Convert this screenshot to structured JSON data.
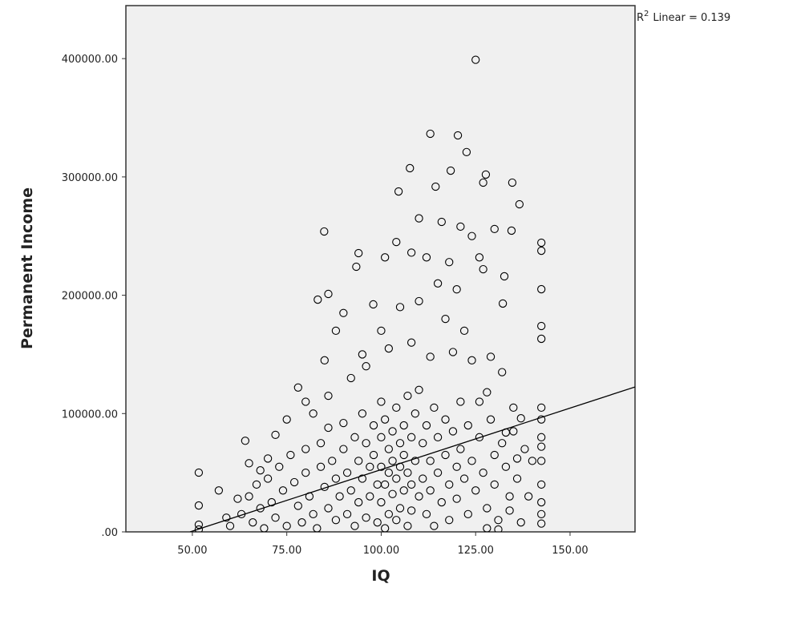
{
  "chart_data": {
    "type": "scatter",
    "x_label": "IQ",
    "y_label": "Permanent Income",
    "annotation": {
      "r": "R",
      "superscript": "2",
      "text": "Linear = 0.139"
    },
    "xlim": [
      32.4,
      167.2
    ],
    "ylim": [
      0,
      444800
    ],
    "xticks": [
      {
        "value": 50,
        "label": "50.00"
      },
      {
        "value": 75,
        "label": "75.00"
      },
      {
        "value": 100,
        "label": "100.00"
      },
      {
        "value": 125,
        "label": "125.00"
      },
      {
        "value": 150,
        "label": "150.00"
      }
    ],
    "yticks": [
      {
        "value": 0,
        "label": ".00"
      },
      {
        "value": 100000,
        "label": "100000.00"
      },
      {
        "value": 200000,
        "label": "200000.00"
      },
      {
        "value": 300000,
        "label": "300000.00"
      },
      {
        "value": 400000,
        "label": "400000.00"
      }
    ],
    "color": "#000000",
    "background": "#f0f0f0",
    "fit_line": {
      "x": [
        49.4,
        167.2
      ],
      "y": [
        0,
        122500
      ]
    },
    "x": [
      125,
      113,
      120.3,
      122.6,
      107.6,
      118.4,
      127.7,
      134.7,
      127,
      114.4,
      104.6,
      136.6,
      84.9,
      134.5,
      142.4,
      142.4,
      93.4,
      94,
      86,
      83.2,
      97.9,
      142.4,
      142.4,
      142.4,
      132.6,
      132.2,
      110,
      116,
      121,
      124,
      112,
      118,
      126,
      130,
      108,
      104,
      101,
      115,
      120,
      127,
      110,
      105,
      117,
      122,
      100,
      95,
      90,
      88,
      85,
      78,
      75,
      72,
      64,
      65,
      68,
      70,
      80,
      82,
      86,
      92,
      96,
      102,
      108,
      113,
      119,
      124,
      129,
      132,
      128,
      135,
      137,
      133,
      138,
      140,
      136,
      139,
      134,
      137,
      131,
      126,
      142.4,
      142.4,
      142.4,
      142.4,
      142.4,
      142.4,
      142.4,
      142.4,
      142.4,
      51.7,
      51.7,
      51.7,
      51.7,
      57,
      59,
      62,
      60,
      63,
      65,
      66,
      67,
      68,
      69,
      70,
      71,
      72,
      73,
      74,
      75,
      76,
      77,
      78,
      79,
      80,
      80,
      81,
      82,
      83,
      84,
      84,
      85,
      86,
      86,
      87,
      88,
      88,
      89,
      90,
      90,
      91,
      91,
      92,
      93,
      93,
      94,
      94,
      95,
      95,
      96,
      96,
      97,
      97,
      98,
      98,
      99,
      99,
      100,
      100,
      100,
      100,
      101,
      101,
      101,
      102,
      102,
      102,
      103,
      103,
      103,
      104,
      104,
      104,
      105,
      105,
      105,
      106,
      106,
      106,
      107,
      107,
      107,
      108,
      108,
      108,
      109,
      109,
      110,
      110,
      111,
      111,
      112,
      112,
      113,
      113,
      114,
      114,
      115,
      115,
      116,
      117,
      117,
      118,
      118,
      119,
      120,
      120,
      121,
      121,
      122,
      123,
      123,
      124,
      125,
      126,
      127,
      128,
      129,
      130,
      130,
      131,
      132,
      133,
      134,
      135,
      136,
      128
    ],
    "values": [
      399000,
      336500,
      335100,
      321000,
      307400,
      305300,
      302000,
      295200,
      295200,
      291800,
      287700,
      276900,
      253900,
      254600,
      244400,
      237600,
      224100,
      235600,
      201100,
      196300,
      192300,
      205100,
      163200,
      174000,
      216000,
      193000,
      265000,
      262000,
      258000,
      250000,
      232000,
      228000,
      232000,
      256000,
      236000,
      245000,
      232000,
      210000,
      205000,
      222000,
      195000,
      190000,
      180000,
      170000,
      170000,
      150000,
      185000,
      170000,
      145000,
      122000,
      95000,
      82000,
      77000,
      58000,
      52000,
      62000,
      110000,
      100000,
      115000,
      130000,
      140000,
      155000,
      160000,
      148000,
      152000,
      145000,
      148000,
      135000,
      118000,
      105000,
      96000,
      84000,
      70000,
      60000,
      45000,
      30000,
      18000,
      8000,
      2000,
      110000,
      105000,
      95000,
      80000,
      72000,
      60000,
      40000,
      25000,
      15000,
      7000,
      50100,
      22300,
      6100,
      2000,
      35000,
      12000,
      28000,
      5000,
      15000,
      30000,
      8000,
      40000,
      20000,
      3000,
      45000,
      25000,
      12000,
      55000,
      35000,
      5000,
      65000,
      42000,
      22000,
      8000,
      70000,
      50000,
      30000,
      15000,
      3000,
      75000,
      55000,
      38000,
      20000,
      88000,
      60000,
      45000,
      10000,
      30000,
      92000,
      70000,
      50000,
      15000,
      35000,
      80000,
      5000,
      60000,
      25000,
      100000,
      45000,
      75000,
      12000,
      55000,
      30000,
      90000,
      65000,
      40000,
      8000,
      110000,
      80000,
      55000,
      25000,
      95000,
      40000,
      3000,
      70000,
      50000,
      15000,
      85000,
      60000,
      32000,
      105000,
      45000,
      10000,
      75000,
      55000,
      20000,
      90000,
      65000,
      35000,
      115000,
      50000,
      5000,
      80000,
      40000,
      18000,
      100000,
      60000,
      30000,
      120000,
      75000,
      45000,
      90000,
      15000,
      60000,
      35000,
      105000,
      5000,
      80000,
      50000,
      25000,
      95000,
      65000,
      40000,
      10000,
      85000,
      55000,
      28000,
      110000,
      70000,
      45000,
      15000,
      90000,
      60000,
      35000,
      80000,
      50000,
      20000,
      95000,
      65000,
      40000,
      10000,
      75000,
      55000,
      30000,
      85000,
      62000,
      3000
    ]
  }
}
